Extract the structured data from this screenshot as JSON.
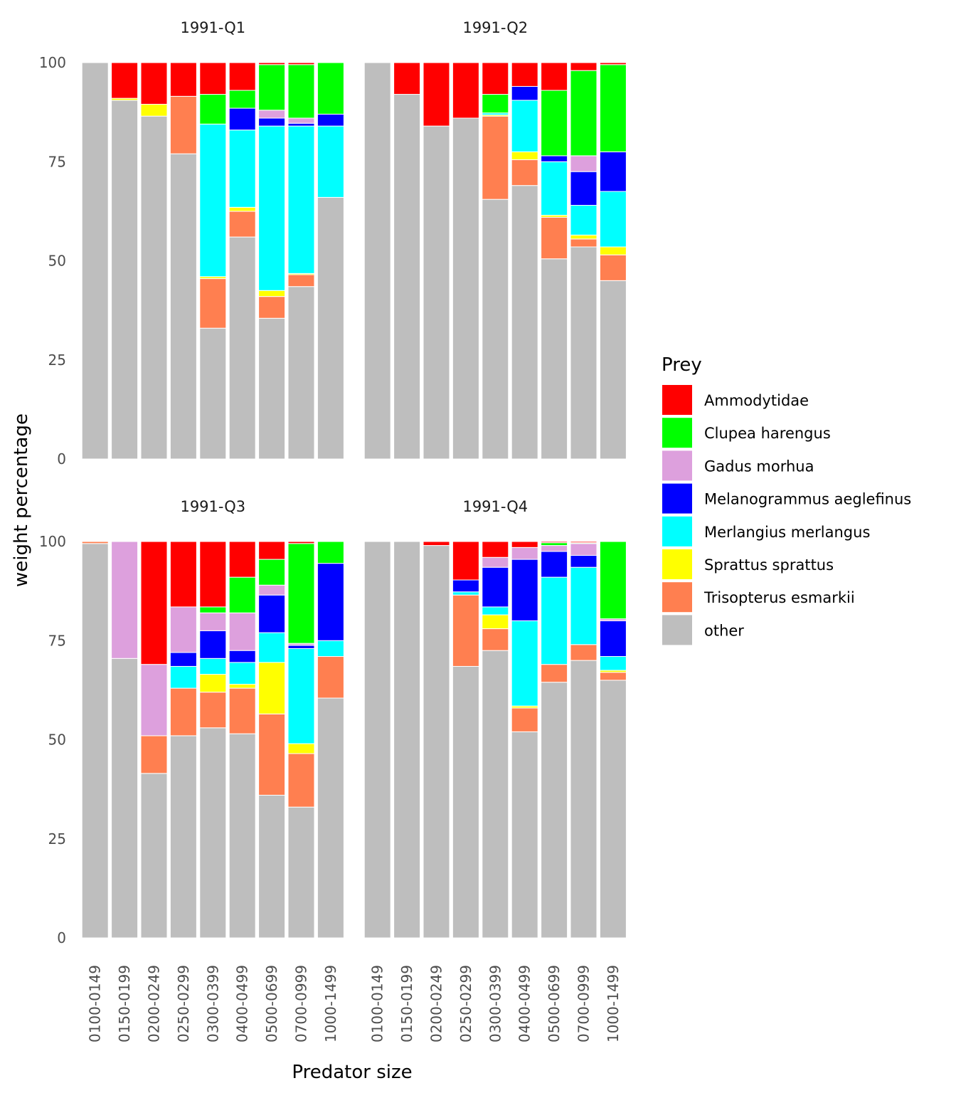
{
  "chart_data": {
    "type": "bar",
    "stacked": true,
    "xlabel": "Predator size",
    "ylabel": "weight percentage",
    "ylim": [
      0,
      100
    ],
    "yticks": [
      0,
      25,
      50,
      75,
      100
    ],
    "categories": [
      "0100-0149",
      "0150-0199",
      "0200-0249",
      "0250-0299",
      "0300-0399",
      "0400-0499",
      "0500-0699",
      "0700-0999",
      "1000-1499"
    ],
    "legend": {
      "title": "Prey",
      "position": "right",
      "entries": [
        {
          "name": "Ammodytidae",
          "color": "#ff0000"
        },
        {
          "name": "Clupea harengus",
          "color": "#00ff00"
        },
        {
          "name": "Gadus morhua",
          "color": "#dda0dd"
        },
        {
          "name": "Melanogrammus aeglefinus",
          "color": "#0000ff"
        },
        {
          "name": "Merlangius merlangus",
          "color": "#00ffff"
        },
        {
          "name": "Sprattus sprattus",
          "color": "#ffff00"
        },
        {
          "name": "Trisopterus esmarkii",
          "color": "#ff7f50"
        },
        {
          "name": "other",
          "color": "#bebebe"
        }
      ]
    },
    "stack_order_bottom_to_top": [
      "other",
      "Trisopterus esmarkii",
      "Sprattus sprattus",
      "Merlangius merlangus",
      "Melanogrammus aeglefinus",
      "Gadus morhua",
      "Clupea harengus",
      "Ammodytidae"
    ],
    "panels": [
      {
        "title": "1991-Q1",
        "bars": [
          {
            "other": 100
          },
          {
            "other": 90.5,
            "Sprattus sprattus": 0.5,
            "Ammodytidae": 9
          },
          {
            "other": 86.5,
            "Sprattus sprattus": 3,
            "Ammodytidae": 10.5
          },
          {
            "other": 77,
            "Trisopterus esmarkii": 14.5,
            "Ammodytidae": 8.5
          },
          {
            "other": 33,
            "Trisopterus esmarkii": 12.5,
            "Sprattus sprattus": 0.5,
            "Merlangius merlangus": 38.5,
            "Clupea harengus": 7.5,
            "Ammodytidae": 8
          },
          {
            "other": 56,
            "Trisopterus esmarkii": 6.5,
            "Sprattus sprattus": 1,
            "Merlangius merlangus": 19.5,
            "Melanogrammus aeglefinus": 5.5,
            "Clupea harengus": 4.5,
            "Ammodytidae": 7
          },
          {
            "other": 35.5,
            "Trisopterus esmarkii": 5.5,
            "Sprattus sprattus": 1.5,
            "Merlangius merlangus": 41.5,
            "Melanogrammus aeglefinus": 2,
            "Gadus morhua": 2,
            "Clupea harengus": 11.5,
            "Ammodytidae": 0.5
          },
          {
            "other": 43.5,
            "Trisopterus esmarkii": 3,
            "Sprattus sprattus": 0.3,
            "Merlangius merlangus": 37.2,
            "Melanogrammus aeglefinus": 0.7,
            "Gadus morhua": 1.3,
            "Clupea harengus": 13.5,
            "Ammodytidae": 0.5
          },
          {
            "other": 66,
            "Merlangius merlangus": 18,
            "Melanogrammus aeglefinus": 3,
            "Clupea harengus": 13
          }
        ]
      },
      {
        "title": "1991-Q2",
        "bars": [
          {
            "other": 100
          },
          {
            "other": 92,
            "Ammodytidae": 8
          },
          {
            "other": 84,
            "Ammodytidae": 16
          },
          {
            "other": 86,
            "Ammodytidae": 14
          },
          {
            "other": 65.5,
            "Trisopterus esmarkii": 21,
            "Sprattus sprattus": 0.3,
            "Merlangius merlangus": 0.5,
            "Clupea harengus": 4.7,
            "Ammodytidae": 8
          },
          {
            "other": 69,
            "Trisopterus esmarkii": 6.5,
            "Sprattus sprattus": 2,
            "Merlangius merlangus": 13,
            "Melanogrammus aeglefinus": 3.5,
            "Ammodytidae": 6
          },
          {
            "other": 50.5,
            "Trisopterus esmarkii": 10.5,
            "Sprattus sprattus": 0.5,
            "Merlangius merlangus": 13.5,
            "Melanogrammus aeglefinus": 1.5,
            "Clupea harengus": 16.5,
            "Ammodytidae": 7
          },
          {
            "other": 53.5,
            "Trisopterus esmarkii": 2,
            "Sprattus sprattus": 1,
            "Merlangius merlangus": 7.5,
            "Melanogrammus aeglefinus": 8.5,
            "Gadus morhua": 4,
            "Clupea harengus": 21.5,
            "Ammodytidae": 2
          },
          {
            "other": 45,
            "Trisopterus esmarkii": 6.5,
            "Sprattus sprattus": 2,
            "Merlangius merlangus": 14,
            "Melanogrammus aeglefinus": 10,
            "Clupea harengus": 22,
            "Ammodytidae": 0.5
          }
        ]
      },
      {
        "title": "1991-Q3",
        "bars": [
          {
            "other": 99.5,
            "Trisopterus esmarkii": 0.5
          },
          {
            "other": 70.5,
            "Gadus morhua": 29.5
          },
          {
            "other": 41.5,
            "Trisopterus esmarkii": 9.5,
            "Gadus morhua": 18,
            "Ammodytidae": 31
          },
          {
            "other": 51,
            "Trisopterus esmarkii": 12,
            "Merlangius merlangus": 5.5,
            "Melanogrammus aeglefinus": 3.5,
            "Gadus morhua": 11.5,
            "Ammodytidae": 16.5
          },
          {
            "other": 53,
            "Trisopterus esmarkii": 9,
            "Sprattus sprattus": 4.5,
            "Merlangius merlangus": 4,
            "Melanogrammus aeglefinus": 7,
            "Gadus morhua": 4.5,
            "Clupea harengus": 1.5,
            "Ammodytidae": 16.5
          },
          {
            "other": 51.5,
            "Trisopterus esmarkii": 11.5,
            "Sprattus sprattus": 1,
            "Merlangius merlangus": 5.5,
            "Melanogrammus aeglefinus": 3,
            "Gadus morhua": 9.5,
            "Clupea harengus": 9,
            "Ammodytidae": 9
          },
          {
            "other": 36,
            "Trisopterus esmarkii": 20.5,
            "Sprattus sprattus": 13,
            "Merlangius merlangus": 7.5,
            "Melanogrammus aeglefinus": 9.5,
            "Gadus morhua": 2.5,
            "Clupea harengus": 6.5,
            "Ammodytidae": 4.5
          },
          {
            "other": 33,
            "Trisopterus esmarkii": 13.5,
            "Sprattus sprattus": 2.5,
            "Merlangius merlangus": 24,
            "Melanogrammus aeglefinus": 0.8,
            "Gadus morhua": 0.5,
            "Clupea harengus": 25.2,
            "Ammodytidae": 0.5
          },
          {
            "other": 60.5,
            "Trisopterus esmarkii": 10.5,
            "Merlangius merlangus": 4,
            "Melanogrammus aeglefinus": 19.5,
            "Clupea harengus": 5.5
          }
        ]
      },
      {
        "title": "1991-Q4",
        "bars": [
          {
            "other": 100
          },
          {
            "other": 100
          },
          {
            "other": 99,
            "Ammodytidae": 1
          },
          {
            "other": 68.5,
            "Trisopterus esmarkii": 18,
            "Merlangius merlangus": 0.8,
            "Melanogrammus aeglefinus": 3,
            "Ammodytidae": 9.7
          },
          {
            "other": 72.5,
            "Trisopterus esmarkii": 5.5,
            "Sprattus sprattus": 3.5,
            "Merlangius merlangus": 2,
            "Melanogrammus aeglefinus": 10,
            "Gadus morhua": 2.5,
            "Ammodytidae": 4
          },
          {
            "other": 52,
            "Trisopterus esmarkii": 6,
            "Sprattus sprattus": 0.5,
            "Merlangius merlangus": 21.5,
            "Melanogrammus aeglefinus": 15.5,
            "Gadus morhua": 3,
            "Ammodytidae": 1.5
          },
          {
            "other": 64.5,
            "Trisopterus esmarkii": 4.5,
            "Merlangius merlangus": 22,
            "Melanogrammus aeglefinus": 6.5,
            "Gadus morhua": 1.5,
            "Clupea harengus": 0.7,
            "Ammodytidae": 0.3
          },
          {
            "other": 70,
            "Trisopterus esmarkii": 4,
            "Merlangius merlangus": 19.5,
            "Melanogrammus aeglefinus": 3,
            "Gadus morhua": 3,
            "Clupea harengus": 0.2,
            "Ammodytidae": 0.3
          },
          {
            "other": 65,
            "Trisopterus esmarkii": 2,
            "Sprattus sprattus": 0.5,
            "Merlangius merlangus": 3.5,
            "Melanogrammus aeglefinus": 9,
            "Gadus morhua": 0.5,
            "Clupea harengus": 19.5
          }
        ]
      }
    ]
  }
}
